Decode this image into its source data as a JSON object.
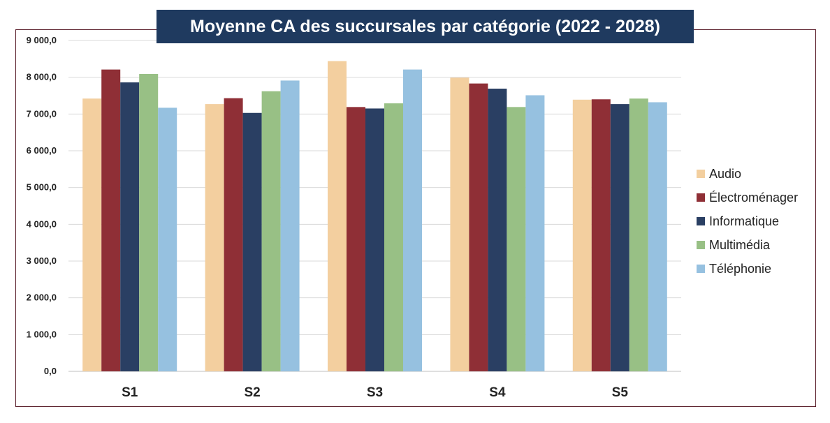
{
  "chart_data": {
    "type": "bar",
    "title": "Moyenne CA des succursales par catégorie (2022 - 2028)",
    "categories": [
      "S1",
      "S2",
      "S3",
      "S4",
      "S5"
    ],
    "ylim": [
      0,
      9000
    ],
    "yticks": [
      "0,0",
      "1 000,0",
      "2 000,0",
      "3 000,0",
      "4 000,0",
      "5 000,0",
      "6 000,0",
      "7 000,0",
      "8 000,0",
      "9 000,0"
    ],
    "grid": true,
    "legend_position": "right",
    "series": [
      {
        "name": "Audio",
        "color": "#f3cf9f",
        "values": [
          7420,
          7270,
          8440,
          7990,
          7390
        ]
      },
      {
        "name": "Électroménager",
        "color": "#8f2f36",
        "values": [
          8210,
          7430,
          7190,
          7830,
          7400
        ]
      },
      {
        "name": "Informatique",
        "color": "#2a3f63",
        "values": [
          7860,
          7030,
          7150,
          7690,
          7270
        ]
      },
      {
        "name": "Multimédia",
        "color": "#98c085",
        "values": [
          8090,
          7620,
          7290,
          7190,
          7420
        ]
      },
      {
        "name": "Téléphonie",
        "color": "#96c1e0",
        "values": [
          7170,
          7910,
          8210,
          7510,
          7320
        ]
      }
    ]
  }
}
